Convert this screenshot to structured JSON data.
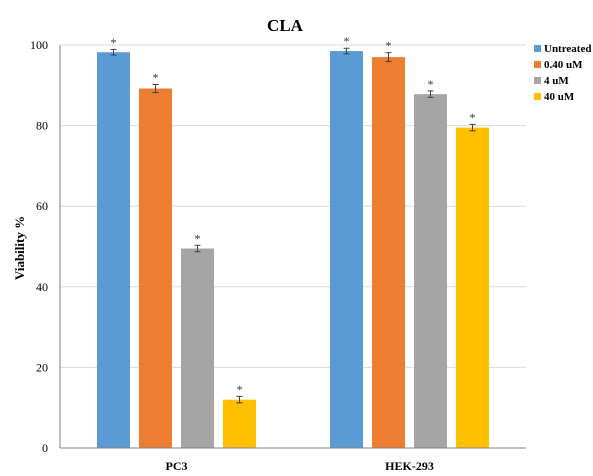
{
  "chart_data": {
    "type": "bar",
    "title": "CLA",
    "xlabel": "",
    "ylabel": "Viability %",
    "categories": [
      "PC3",
      "HEK-293"
    ],
    "ylim": [
      0,
      100
    ],
    "yticks": [
      0,
      20,
      40,
      60,
      80,
      100
    ],
    "grid": true,
    "legend_position": "right",
    "series": [
      {
        "name": "Untreated",
        "color": "#5B9BD5",
        "values": [
          98.2,
          98.5
        ],
        "errors": [
          0.7,
          0.7
        ]
      },
      {
        "name": "0.40 uM",
        "color": "#ED7D31",
        "values": [
          89.2,
          97.0
        ],
        "errors": [
          1.0,
          1.1
        ]
      },
      {
        "name": "4 uM",
        "color": "#A5A5A5",
        "values": [
          49.5,
          87.8
        ],
        "errors": [
          0.8,
          0.8
        ]
      },
      {
        "name": "40 uM",
        "color": "#FFC000",
        "values": [
          12.0,
          79.5
        ],
        "errors": [
          0.8,
          0.8
        ]
      }
    ],
    "annotations": {
      "significance_marker": "*"
    }
  }
}
